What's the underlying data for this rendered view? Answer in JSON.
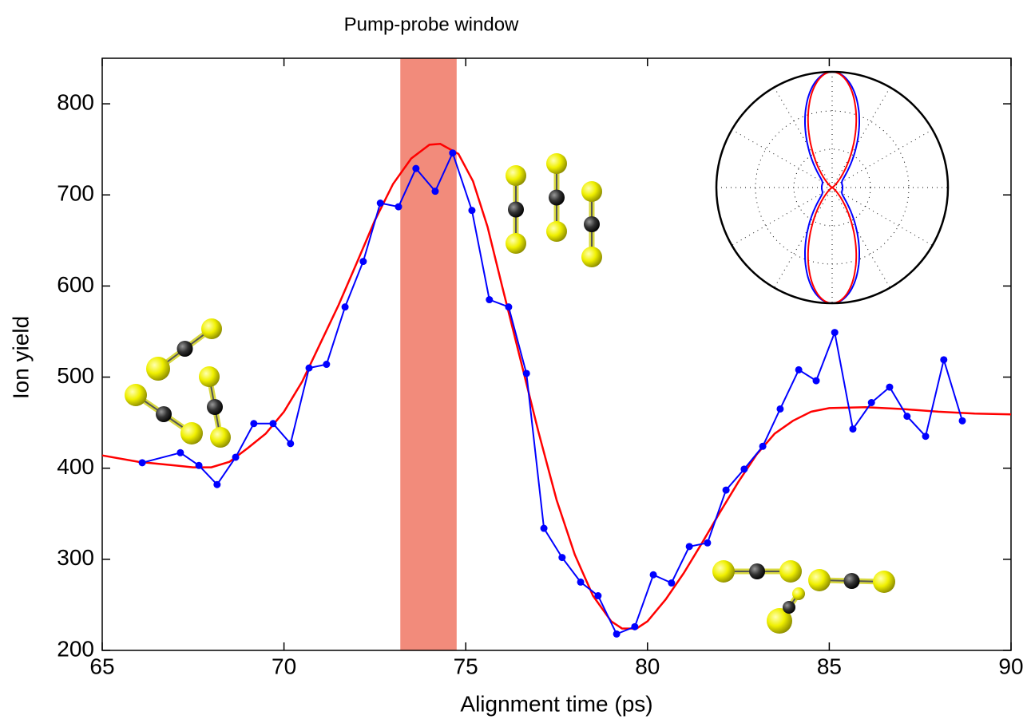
{
  "chart_data": {
    "type": "line",
    "xlabel": "Alignment time (ps)",
    "ylabel": "Ion yield",
    "annotation": {
      "text": "Pump-probe window",
      "xrange": [
        73.2,
        74.75
      ],
      "color": "#f28b7b"
    },
    "xlim": [
      65,
      90
    ],
    "xticks": [
      65,
      70,
      75,
      80,
      85,
      90
    ],
    "ylim": [
      200,
      850
    ],
    "yticks": [
      200,
      300,
      400,
      500,
      600,
      700,
      800
    ],
    "series": [
      {
        "color": "#0000ff",
        "markers": true,
        "x": [
          66.1,
          67.15,
          67.66,
          68.16,
          68.67,
          69.17,
          69.7,
          70.18,
          70.69,
          71.17,
          71.68,
          72.18,
          72.65,
          73.15,
          73.63,
          74.16,
          74.64,
          75.17,
          75.65,
          76.18,
          76.67,
          77.15,
          77.65,
          78.16,
          78.64,
          79.15,
          79.65,
          80.16,
          80.66,
          81.15,
          81.65,
          82.16,
          82.66,
          83.17,
          83.65,
          84.16,
          84.64,
          85.15,
          85.65,
          86.16,
          86.66,
          87.14,
          87.65,
          88.15,
          88.66
        ],
        "values": [
          406,
          417,
          403,
          382,
          412,
          449,
          449,
          427,
          510,
          514,
          577,
          627,
          691,
          687,
          729,
          704,
          746,
          683,
          585,
          577,
          504,
          334,
          302,
          275,
          260,
          218,
          226,
          283,
          274,
          314,
          318,
          376,
          399,
          424,
          465,
          508,
          496,
          549,
          443,
          472,
          489,
          457,
          435,
          519,
          452
        ]
      },
      {
        "color": "#ff0000",
        "markers": false,
        "x": [
          65,
          66,
          67,
          67.5,
          68,
          68.5,
          69,
          69.5,
          70,
          70.5,
          71,
          71.5,
          72,
          72.5,
          73,
          73.5,
          74,
          74.3,
          74.8,
          75.2,
          75.6,
          76,
          76.5,
          77,
          77.5,
          78,
          78.5,
          79,
          79.3,
          79.7,
          80,
          80.5,
          81,
          81.5,
          82,
          82.5,
          83,
          83.5,
          84,
          84.5,
          85,
          86,
          87,
          88,
          89,
          90
        ],
        "values": [
          414,
          407,
          403,
          401,
          401,
          407,
          422,
          438,
          462,
          495,
          537,
          579,
          625,
          672,
          712,
          740,
          755,
          756,
          745,
          715,
          665,
          600,
          520,
          440,
          365,
          305,
          260,
          232,
          224,
          224,
          232,
          256,
          285,
          318,
          352,
          385,
          415,
          438,
          452,
          462,
          466,
          467,
          465,
          462,
          460,
          459
        ]
      }
    ]
  }
}
